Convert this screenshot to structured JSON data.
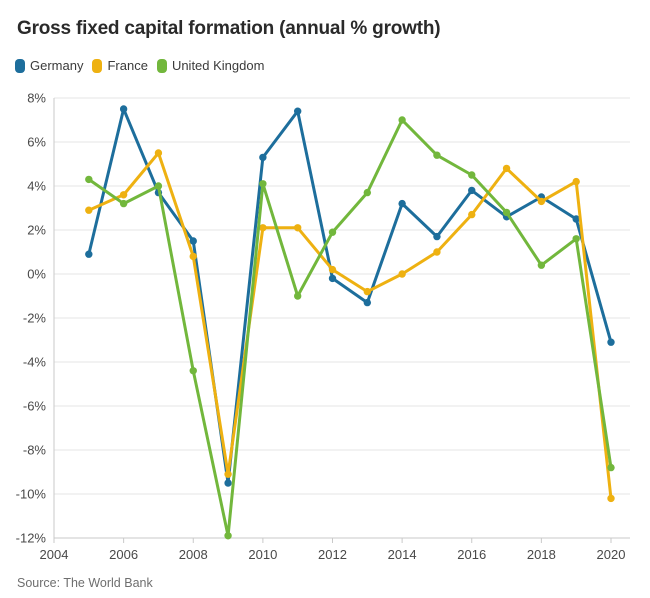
{
  "title": "Gross fixed capital formation (annual % growth)",
  "source": "Source: The World Bank",
  "colors": {
    "germany": "#1d6e9c",
    "france": "#eeb111",
    "united_kingdom": "#72b73c",
    "gridline": "#e6e6e6",
    "axis_line": "#c9c9c9",
    "tick_label": "#494949",
    "title_text": "#2a2a2a",
    "source_text": "#6e6e6e"
  },
  "chart_data": {
    "type": "line",
    "title": "Gross fixed capital formation (annual % growth)",
    "y_unit": "%",
    "ylim": [
      -12,
      8
    ],
    "ytick_step": 2,
    "grid": true,
    "legend_position": "top",
    "x": [
      2005,
      2006,
      2007,
      2008,
      2009,
      2010,
      2011,
      2012,
      2013,
      2014,
      2015,
      2016,
      2017,
      2018,
      2019,
      2020
    ],
    "x_axis_ticks": [
      2004,
      2006,
      2008,
      2010,
      2012,
      2014,
      2016,
      2018,
      2020
    ],
    "series": [
      {
        "name": "Germany",
        "color": "#1d6e9c",
        "values": [
          0.9,
          7.5,
          3.7,
          1.5,
          -9.5,
          5.3,
          7.4,
          -0.2,
          -1.3,
          3.2,
          1.7,
          3.8,
          2.6,
          3.5,
          2.5,
          -3.1
        ]
      },
      {
        "name": "France",
        "color": "#eeb111",
        "values": [
          2.9,
          3.6,
          5.5,
          0.8,
          -9.1,
          2.1,
          2.1,
          0.2,
          -0.8,
          0.0,
          1.0,
          2.7,
          4.8,
          3.3,
          4.2,
          -10.2
        ]
      },
      {
        "name": "United Kingdom",
        "color": "#72b73c",
        "values": [
          4.3,
          3.2,
          4.0,
          -4.4,
          -11.9,
          4.1,
          -1.0,
          1.9,
          3.7,
          7.0,
          5.4,
          4.5,
          2.8,
          0.4,
          1.6,
          -8.8
        ]
      }
    ]
  }
}
